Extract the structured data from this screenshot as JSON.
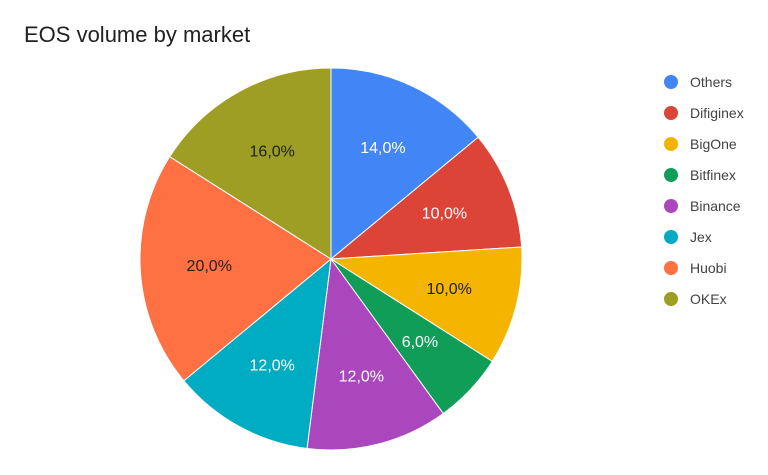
{
  "chart_data": {
    "type": "pie",
    "title": "EOS volume by market",
    "legend_position": "right",
    "slices": [
      {
        "name": "Others",
        "value": 14,
        "label": "14,0%",
        "color": "#4285F4",
        "label_color": "#ffffff"
      },
      {
        "name": "Difiginex",
        "value": 10,
        "label": "10,0%",
        "color": "#DB4437",
        "label_color": "#ffffff"
      },
      {
        "name": "BigOne",
        "value": 10,
        "label": "10,0%",
        "color": "#F4B400",
        "label_color": "#212121"
      },
      {
        "name": "Bitfinex",
        "value": 6,
        "label": "6,0%",
        "color": "#0F9D58",
        "label_color": "#ffffff"
      },
      {
        "name": "Binance",
        "value": 12,
        "label": "12,0%",
        "color": "#AB47BC",
        "label_color": "#ffffff"
      },
      {
        "name": "Jex",
        "value": 12,
        "label": "12,0%",
        "color": "#00ACC1",
        "label_color": "#ffffff"
      },
      {
        "name": "Huobi",
        "value": 20,
        "label": "20,0%",
        "color": "#FF7043",
        "label_color": "#212121"
      },
      {
        "name": "OKEx",
        "value": 16,
        "label": "16,0%",
        "color": "#9E9D24",
        "label_color": "#212121"
      }
    ]
  }
}
